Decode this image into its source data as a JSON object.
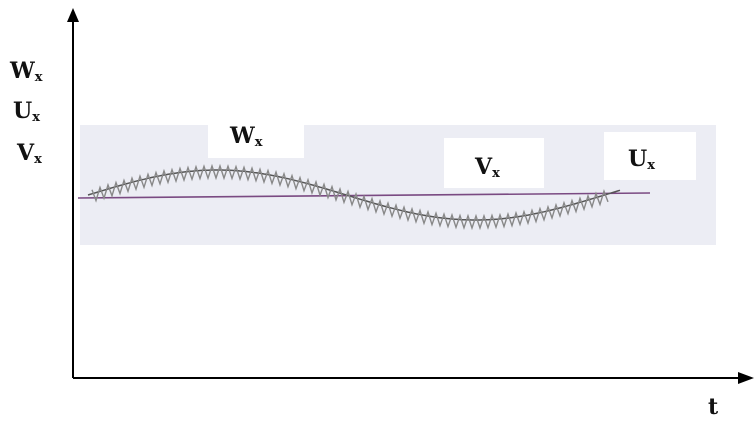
{
  "chart_data": {
    "type": "line",
    "xlabel": "t",
    "ylabels": [
      {
        "main": "W",
        "sub": "x"
      },
      {
        "main": "U",
        "sub": "x"
      },
      {
        "main": "V",
        "sub": "x"
      }
    ],
    "curve_labels": {
      "W": {
        "main": "W",
        "sub": "x"
      },
      "V": {
        "main": "V",
        "sub": "x"
      },
      "U": {
        "main": "U",
        "sub": "x"
      }
    },
    "grid": false,
    "legend": "none",
    "shaded_band": true,
    "colors": {
      "background": "#ffffff",
      "band": "#ecedf4",
      "axis": "#000000",
      "baseline": "#7a4a82",
      "smooth_curve": "#555555",
      "noisy_curve": "#888888"
    }
  }
}
